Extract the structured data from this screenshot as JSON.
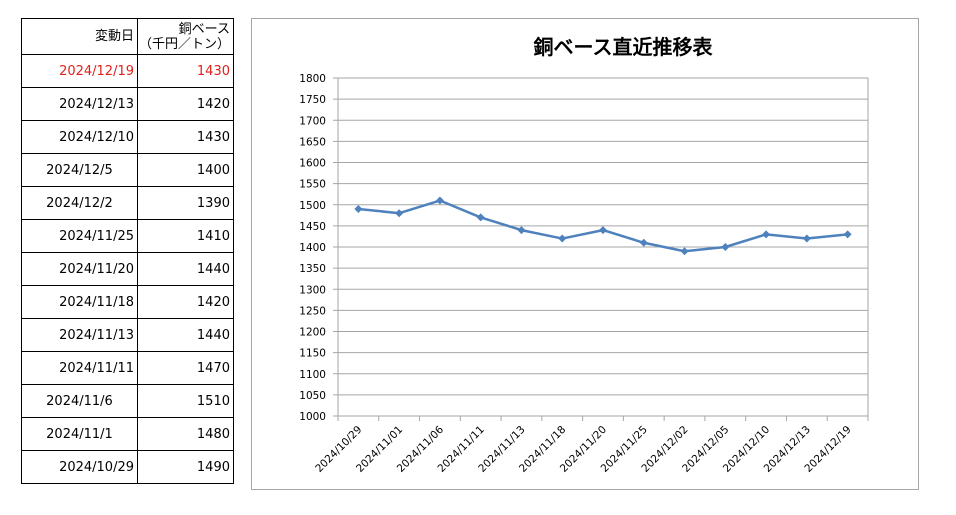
{
  "table": {
    "headers": {
      "date": "変動日",
      "value_line1": "銅ベース",
      "value_line2": "（千円／トン）"
    },
    "highlight_color": "#e0201b",
    "rows": [
      {
        "date": "2024/12/19",
        "value": "1430",
        "highlight": true
      },
      {
        "date": "2024/12/13",
        "value": "1420",
        "highlight": false
      },
      {
        "date": "2024/12/10",
        "value": "1430",
        "highlight": false
      },
      {
        "date": "2024/12/5",
        "value": "1400",
        "highlight": false
      },
      {
        "date": "2024/12/2",
        "value": "1390",
        "highlight": false
      },
      {
        "date": "2024/11/25",
        "value": "1410",
        "highlight": false
      },
      {
        "date": "2024/11/20",
        "value": "1440",
        "highlight": false
      },
      {
        "date": "2024/11/18",
        "value": "1420",
        "highlight": false
      },
      {
        "date": "2024/11/13",
        "value": "1440",
        "highlight": false
      },
      {
        "date": "2024/11/11",
        "value": "1470",
        "highlight": false
      },
      {
        "date": "2024/11/6",
        "value": "1510",
        "highlight": false
      },
      {
        "date": "2024/11/1",
        "value": "1480",
        "highlight": false
      },
      {
        "date": "2024/10/29",
        "value": "1490",
        "highlight": false
      }
    ]
  },
  "chart_data": {
    "type": "line",
    "title": "銅ベース直近推移表",
    "xlabel": "",
    "ylabel": "",
    "ylim": [
      1000,
      1800
    ],
    "y_tick_step": 50,
    "grid": true,
    "legend": "none",
    "line_color": "#4f81bd",
    "grid_color": "#a6a6a6",
    "categories": [
      "2024/10/29",
      "2024/11/01",
      "2024/11/06",
      "2024/11/11",
      "2024/11/13",
      "2024/11/18",
      "2024/11/20",
      "2024/11/25",
      "2024/12/02",
      "2024/12/05",
      "2024/12/10",
      "2024/12/13",
      "2024/12/19"
    ],
    "series": [
      {
        "values": [
          1490,
          1480,
          1510,
          1470,
          1440,
          1420,
          1440,
          1410,
          1390,
          1400,
          1430,
          1420,
          1430
        ]
      }
    ]
  }
}
